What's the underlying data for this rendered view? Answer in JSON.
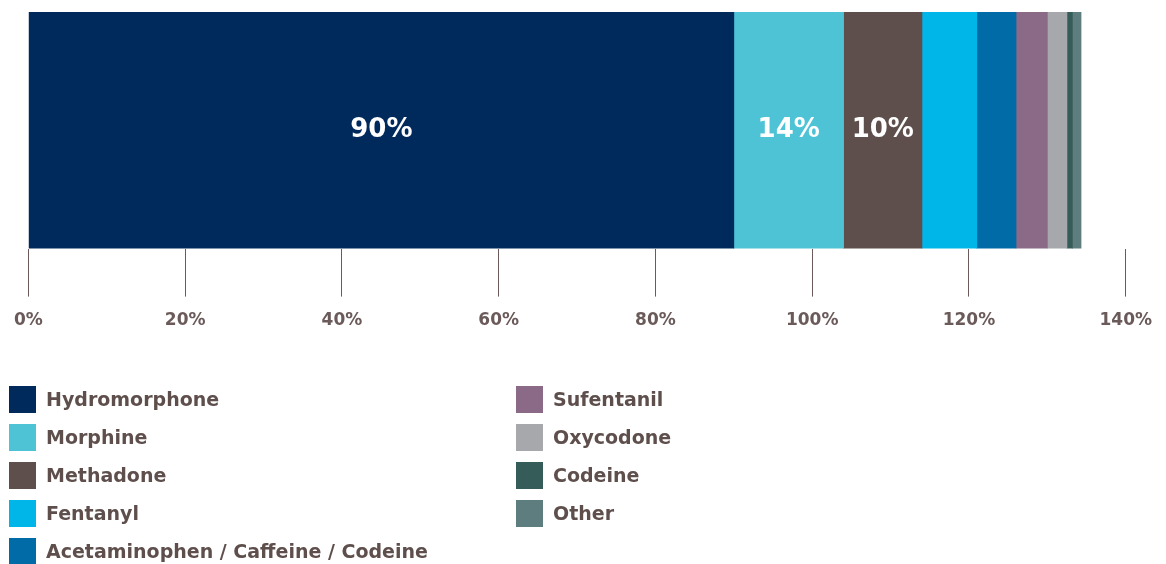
{
  "chart_data": {
    "type": "bar",
    "orientation": "horizontal",
    "stacked": true,
    "categories": [
      null
    ],
    "xlim": [
      0,
      140
    ],
    "xticks": [
      {
        "value": 0,
        "label": "0%"
      },
      {
        "value": 20,
        "label": "20%"
      },
      {
        "value": 40,
        "label": "40%"
      },
      {
        "value": 60,
        "label": "60%"
      },
      {
        "value": 80,
        "label": "80%"
      },
      {
        "value": 100,
        "label": "100%"
      },
      {
        "value": 120,
        "label": "120%"
      },
      {
        "value": 140,
        "label": "140%"
      }
    ],
    "legend": "bottom",
    "series": [
      {
        "name": "Hydromorphone",
        "color": "#002a5c",
        "values": [
          90
        ],
        "value_labels": [
          "90%"
        ]
      },
      {
        "name": "Morphine",
        "color": "#4fc3d6",
        "values": [
          14
        ],
        "value_labels": [
          "14%"
        ]
      },
      {
        "name": "Methadone",
        "color": "#5e4f4c",
        "values": [
          10
        ],
        "value_labels": [
          "10%"
        ]
      },
      {
        "name": "Fentanyl",
        "color": "#00b5e8",
        "values": [
          7
        ]
      },
      {
        "name": "Acetaminophen / Caffeine / Codeine",
        "color": "#006ba6",
        "values": [
          5
        ]
      },
      {
        "name": "Sufentanil",
        "color": "#8a6a87",
        "values": [
          4
        ]
      },
      {
        "name": "Oxycodone",
        "color": "#a6a8ab",
        "values": [
          2.5
        ]
      },
      {
        "name": "Codeine",
        "color": "#355c58",
        "values": [
          0.7
        ]
      },
      {
        "name": "Other",
        "color": "#5e7d7f",
        "values": [
          1.1
        ]
      }
    ]
  }
}
